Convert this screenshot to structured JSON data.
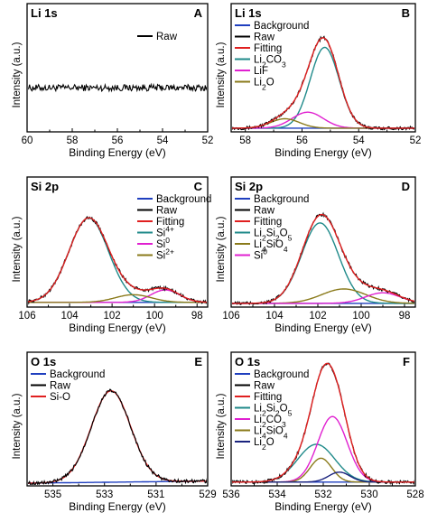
{
  "figure": {
    "panels": [
      {
        "id": "A",
        "element": "Li 1s",
        "xlabel": "Binding Energy (eV)",
        "ylabel": "Intensity (a.u.)"
      },
      {
        "id": "B",
        "element": "Li 1s",
        "xlabel": "Binding Energy (eV)",
        "ylabel": "Intensity (a.u.)"
      },
      {
        "id": "C",
        "element": "Si 2p",
        "xlabel": "Binding Energy (eV)",
        "ylabel": "Intensity (a.u.)"
      },
      {
        "id": "D",
        "element": "Si 2p",
        "xlabel": "Binding Energy (eV)",
        "ylabel": "Intensity (a.u.)"
      },
      {
        "id": "E",
        "element": "O 1s",
        "xlabel": "Binding Energy (eV)",
        "ylabel": "Intensity (a.u.)"
      },
      {
        "id": "F",
        "element": "O 1s",
        "xlabel": "Binding Energy (eV)",
        "ylabel": "Intensity (a.u.)"
      }
    ]
  },
  "chart_data": [
    {
      "type": "line",
      "panel": "A",
      "title": "Li 1s",
      "xlabel": "Binding Energy (eV)",
      "ylabel": "Intensity (a.u.)",
      "xlim": [
        60,
        52
      ],
      "x_reversed": true,
      "xticks": [
        60,
        58,
        56,
        54,
        52
      ],
      "grid": false,
      "legend_position": "top-right",
      "series": [
        {
          "name": "Raw",
          "color": "#000000",
          "shape": "noise",
          "level": 0.45,
          "amplitude": 0.035
        }
      ]
    },
    {
      "type": "line",
      "panel": "B",
      "title": "Li 1s",
      "xlabel": "Binding Energy (eV)",
      "ylabel": "Intensity (a.u.)",
      "xlim": [
        58.5,
        52
      ],
      "x_reversed": true,
      "xticks": [
        58,
        56,
        54,
        52
      ],
      "grid": false,
      "legend_position": "top-left",
      "series": [
        {
          "name": "Background",
          "legend": [
            "Background"
          ],
          "color": "#1f3fbf",
          "shape": "background",
          "base": 0.02,
          "slope": 0.0
        },
        {
          "name": "Raw",
          "legend": [
            "Raw"
          ],
          "color": "#000000",
          "shape": "raw"
        },
        {
          "name": "Fitting",
          "legend": [
            "Fitting"
          ],
          "color": "#e02020",
          "shape": "fit"
        },
        {
          "name": "Li2CO3",
          "legend": [
            "Li",
            {
              "sub": "2"
            },
            "CO",
            {
              "sub": "3"
            }
          ],
          "color": "#1f8a8a",
          "shape": "peak",
          "center": 55.2,
          "fwhm": 1.2,
          "height": 0.86
        },
        {
          "name": "LiF",
          "legend": [
            "LiF"
          ],
          "color": "#e020d0",
          "shape": "peak",
          "center": 55.8,
          "fwhm": 1.3,
          "height": 0.17
        },
        {
          "name": "Li2O",
          "legend": [
            "Li",
            {
              "sub": "2"
            },
            "O"
          ],
          "color": "#8a7a1a",
          "shape": "peak",
          "center": 56.6,
          "fwhm": 1.2,
          "height": 0.1
        }
      ]
    },
    {
      "type": "line",
      "panel": "C",
      "title": "Si 2p",
      "xlabel": "Binding Energy (eV)",
      "ylabel": "Intensity (a.u.)",
      "xlim": [
        106,
        97.5
      ],
      "x_reversed": true,
      "xticks": [
        106,
        104,
        102,
        100,
        98
      ],
      "grid": false,
      "legend_position": "top-right",
      "series": [
        {
          "name": "Background",
          "legend": [
            "Background"
          ],
          "color": "#1f3fbf",
          "shape": "background",
          "base": 0.03,
          "slope": 0.0
        },
        {
          "name": "Raw",
          "legend": [
            "Raw"
          ],
          "color": "#000000",
          "shape": "raw"
        },
        {
          "name": "Fitting",
          "legend": [
            "Fitting"
          ],
          "color": "#e02020",
          "shape": "fit"
        },
        {
          "name": "Si4+",
          "legend": [
            "Si",
            {
              "sup": "4+"
            }
          ],
          "color": "#1f8a8a",
          "shape": "peak",
          "center": 103.1,
          "fwhm": 2.2,
          "height": 0.88
        },
        {
          "name": "Si0",
          "legend": [
            "Si",
            {
              "sup": "0"
            }
          ],
          "color": "#e020d0",
          "shape": "peak",
          "center": 99.5,
          "fwhm": 1.6,
          "height": 0.13
        },
        {
          "name": "Si2+",
          "legend": [
            "Si",
            {
              "sup": "2+"
            }
          ],
          "color": "#8a7a1a",
          "shape": "peak",
          "center": 101.0,
          "fwhm": 2.0,
          "height": 0.08
        }
      ]
    },
    {
      "type": "line",
      "panel": "D",
      "title": "Si 2p",
      "xlabel": "Binding Energy (eV)",
      "ylabel": "Intensity (a.u.)",
      "xlim": [
        106,
        97.5
      ],
      "x_reversed": true,
      "xticks": [
        106,
        104,
        102,
        100,
        98
      ],
      "grid": false,
      "legend_position": "top-left",
      "series": [
        {
          "name": "Background",
          "legend": [
            "Background"
          ],
          "color": "#1f3fbf",
          "shape": "background",
          "base": 0.02,
          "slope": 0.0
        },
        {
          "name": "Raw",
          "legend": [
            "Raw"
          ],
          "color": "#000000",
          "shape": "raw"
        },
        {
          "name": "Fitting",
          "legend": [
            "Fitting"
          ],
          "color": "#e02020",
          "shape": "fit"
        },
        {
          "name": "Li2Si2O5",
          "legend": [
            "Li",
            {
              "sub": "2"
            },
            "Si",
            {
              "sub": "2"
            },
            "O",
            {
              "sub": "5"
            }
          ],
          "color": "#1f8a8a",
          "shape": "peak",
          "center": 101.9,
          "fwhm": 2.0,
          "height": 0.84
        },
        {
          "name": "Li4SiO4",
          "legend": [
            "Li",
            {
              "sub": "4"
            },
            "SiO",
            {
              "sub": "4"
            }
          ],
          "color": "#8a7a1a",
          "shape": "peak",
          "center": 100.8,
          "fwhm": 2.4,
          "height": 0.15
        },
        {
          "name": "Si0",
          "legend": [
            "Si",
            {
              "sup": "0"
            }
          ],
          "color": "#e020d0",
          "shape": "peak",
          "center": 99.0,
          "fwhm": 1.9,
          "height": 0.11
        }
      ]
    },
    {
      "type": "line",
      "panel": "E",
      "title": "O 1s",
      "xlabel": "Binding Energy (eV)",
      "ylabel": "Intensity (a.u.)",
      "xlim": [
        536,
        529
      ],
      "x_reversed": true,
      "xticks": [
        535,
        533,
        531,
        529
      ],
      "grid": false,
      "legend_position": "top-left",
      "series": [
        {
          "name": "Background",
          "legend": [
            "Background"
          ],
          "color": "#1f3fbf",
          "shape": "background",
          "base": 0.03,
          "slope": -0.003
        },
        {
          "name": "Raw",
          "legend": [
            "Raw"
          ],
          "color": "#000000",
          "shape": "raw"
        },
        {
          "name": "Si-O",
          "legend": [
            "Si-O"
          ],
          "color": "#e02020",
          "shape": "peak",
          "center": 532.75,
          "fwhm": 1.8,
          "height": 0.92
        }
      ]
    },
    {
      "type": "line",
      "panel": "F",
      "title": "O 1s",
      "xlabel": "Binding Energy (eV)",
      "ylabel": "Intensity (a.u.)",
      "xlim": [
        536,
        528
      ],
      "x_reversed": true,
      "xticks": [
        536,
        534,
        532,
        530,
        528
      ],
      "grid": false,
      "legend_position": "top-left",
      "series": [
        {
          "name": "Background",
          "legend": [
            "Background"
          ],
          "color": "#1f3fbf",
          "shape": "background",
          "base": 0.02,
          "slope": 0.0
        },
        {
          "name": "Raw",
          "legend": [
            "Raw"
          ],
          "color": "#000000",
          "shape": "raw"
        },
        {
          "name": "Fitting",
          "legend": [
            "Fitting"
          ],
          "color": "#e02020",
          "shape": "fit"
        },
        {
          "name": "Li2Si2O5",
          "legend": [
            "Li",
            {
              "sub": "2"
            },
            "Si",
            {
              "sub": "2"
            },
            "O",
            {
              "sub": "5"
            }
          ],
          "color": "#1f8a8a",
          "shape": "peak",
          "center": 532.3,
          "fwhm": 1.9,
          "height": 0.38
        },
        {
          "name": "Li2CO3",
          "legend": [
            "Li",
            {
              "sub": "2"
            },
            "CO",
            {
              "sub": "3"
            }
          ],
          "color": "#e020d0",
          "shape": "peak",
          "center": 531.6,
          "fwhm": 1.5,
          "height": 0.66
        },
        {
          "name": "Li4SiO4",
          "legend": [
            "Li",
            {
              "sub": "4"
            },
            "SiO",
            {
              "sub": "4"
            }
          ],
          "color": "#8a7a1a",
          "shape": "peak",
          "center": 532.1,
          "fwhm": 1.1,
          "height": 0.24
        },
        {
          "name": "Li2O",
          "legend": [
            "Li",
            {
              "sub": "2"
            },
            "O"
          ],
          "color": "#1a237e",
          "shape": "peak",
          "center": 531.3,
          "fwhm": 1.1,
          "height": 0.1
        }
      ]
    }
  ]
}
